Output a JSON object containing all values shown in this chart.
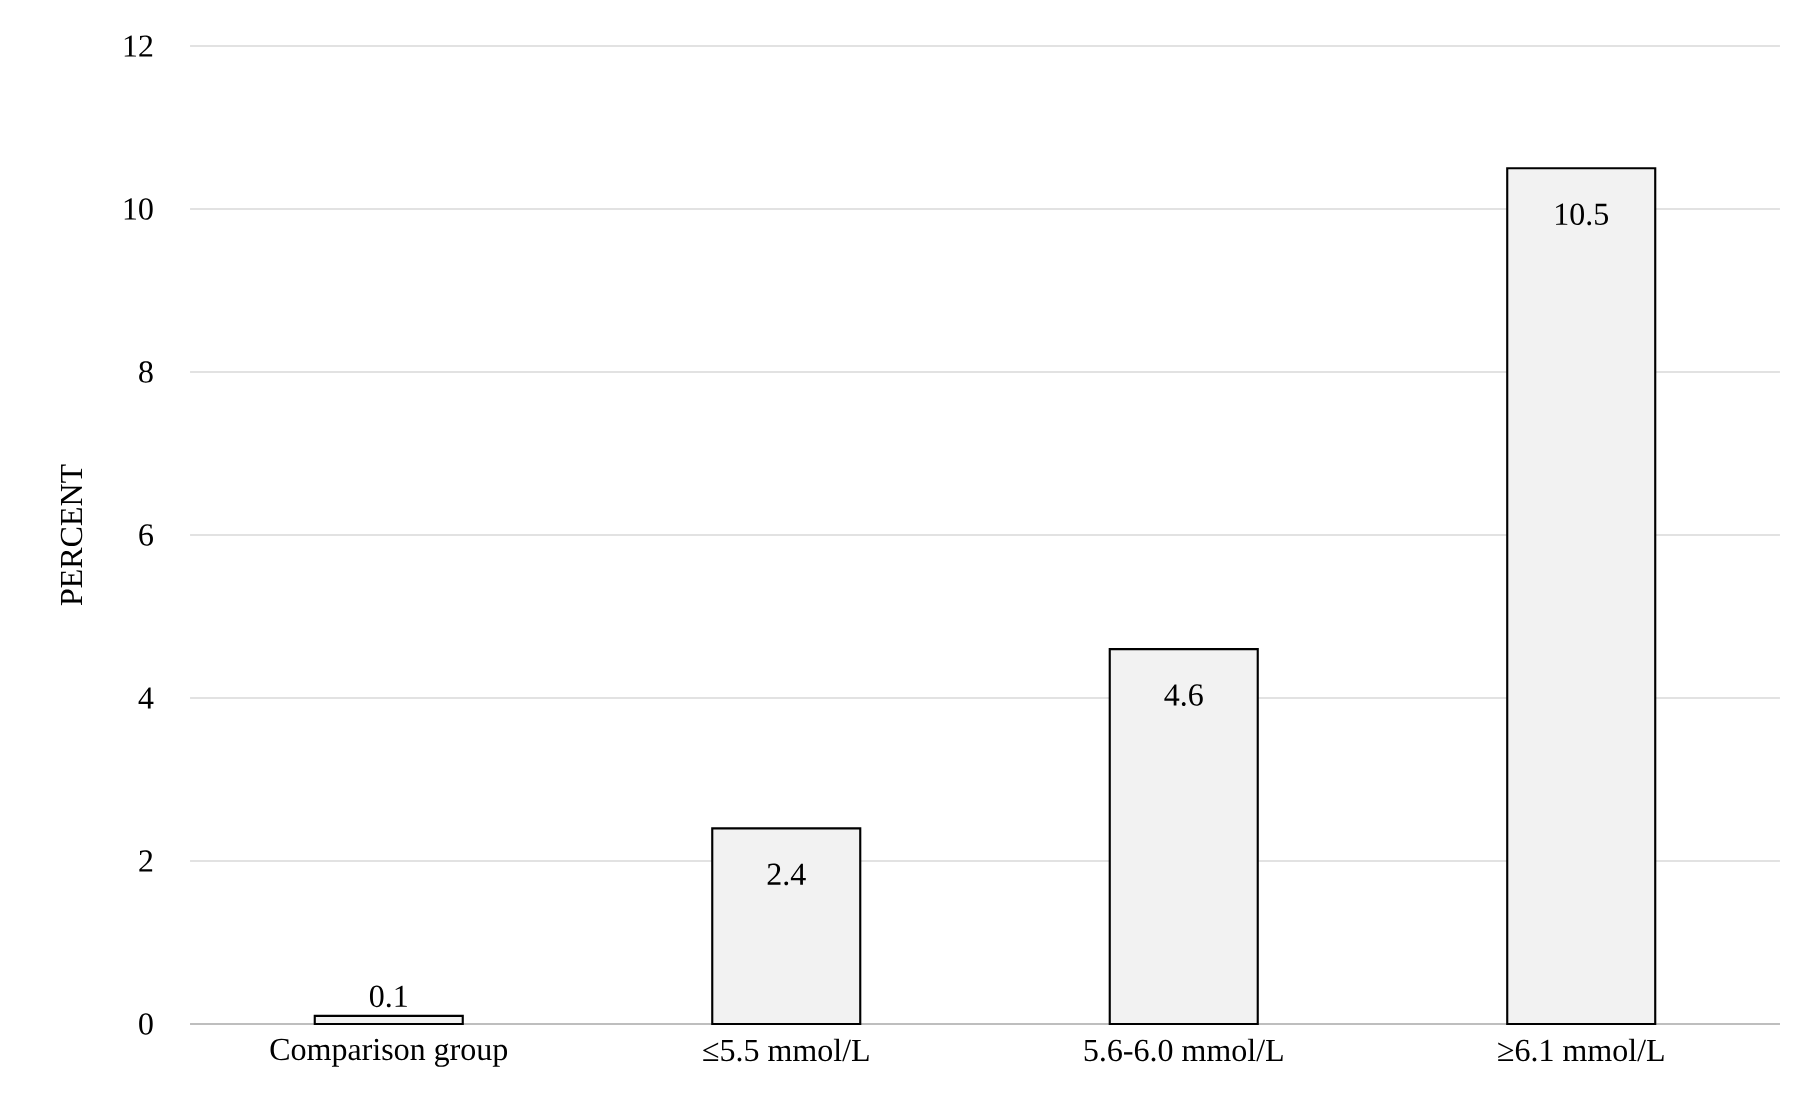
{
  "chart_data": {
    "type": "bar",
    "ylabel": "PERCENT",
    "categories": [
      "Comparison group",
      "≤5.5 mmol/L",
      "5.6-6.0 mmol/L",
      "≥6.1 mmol/L"
    ],
    "values": [
      0.1,
      2.4,
      4.6,
      10.5
    ],
    "color": "#f2f2f2",
    "ylim": [
      0,
      12
    ],
    "yticks": [
      0,
      2,
      4,
      6,
      8,
      10,
      12
    ],
    "grid": "y",
    "data_labels": true
  }
}
